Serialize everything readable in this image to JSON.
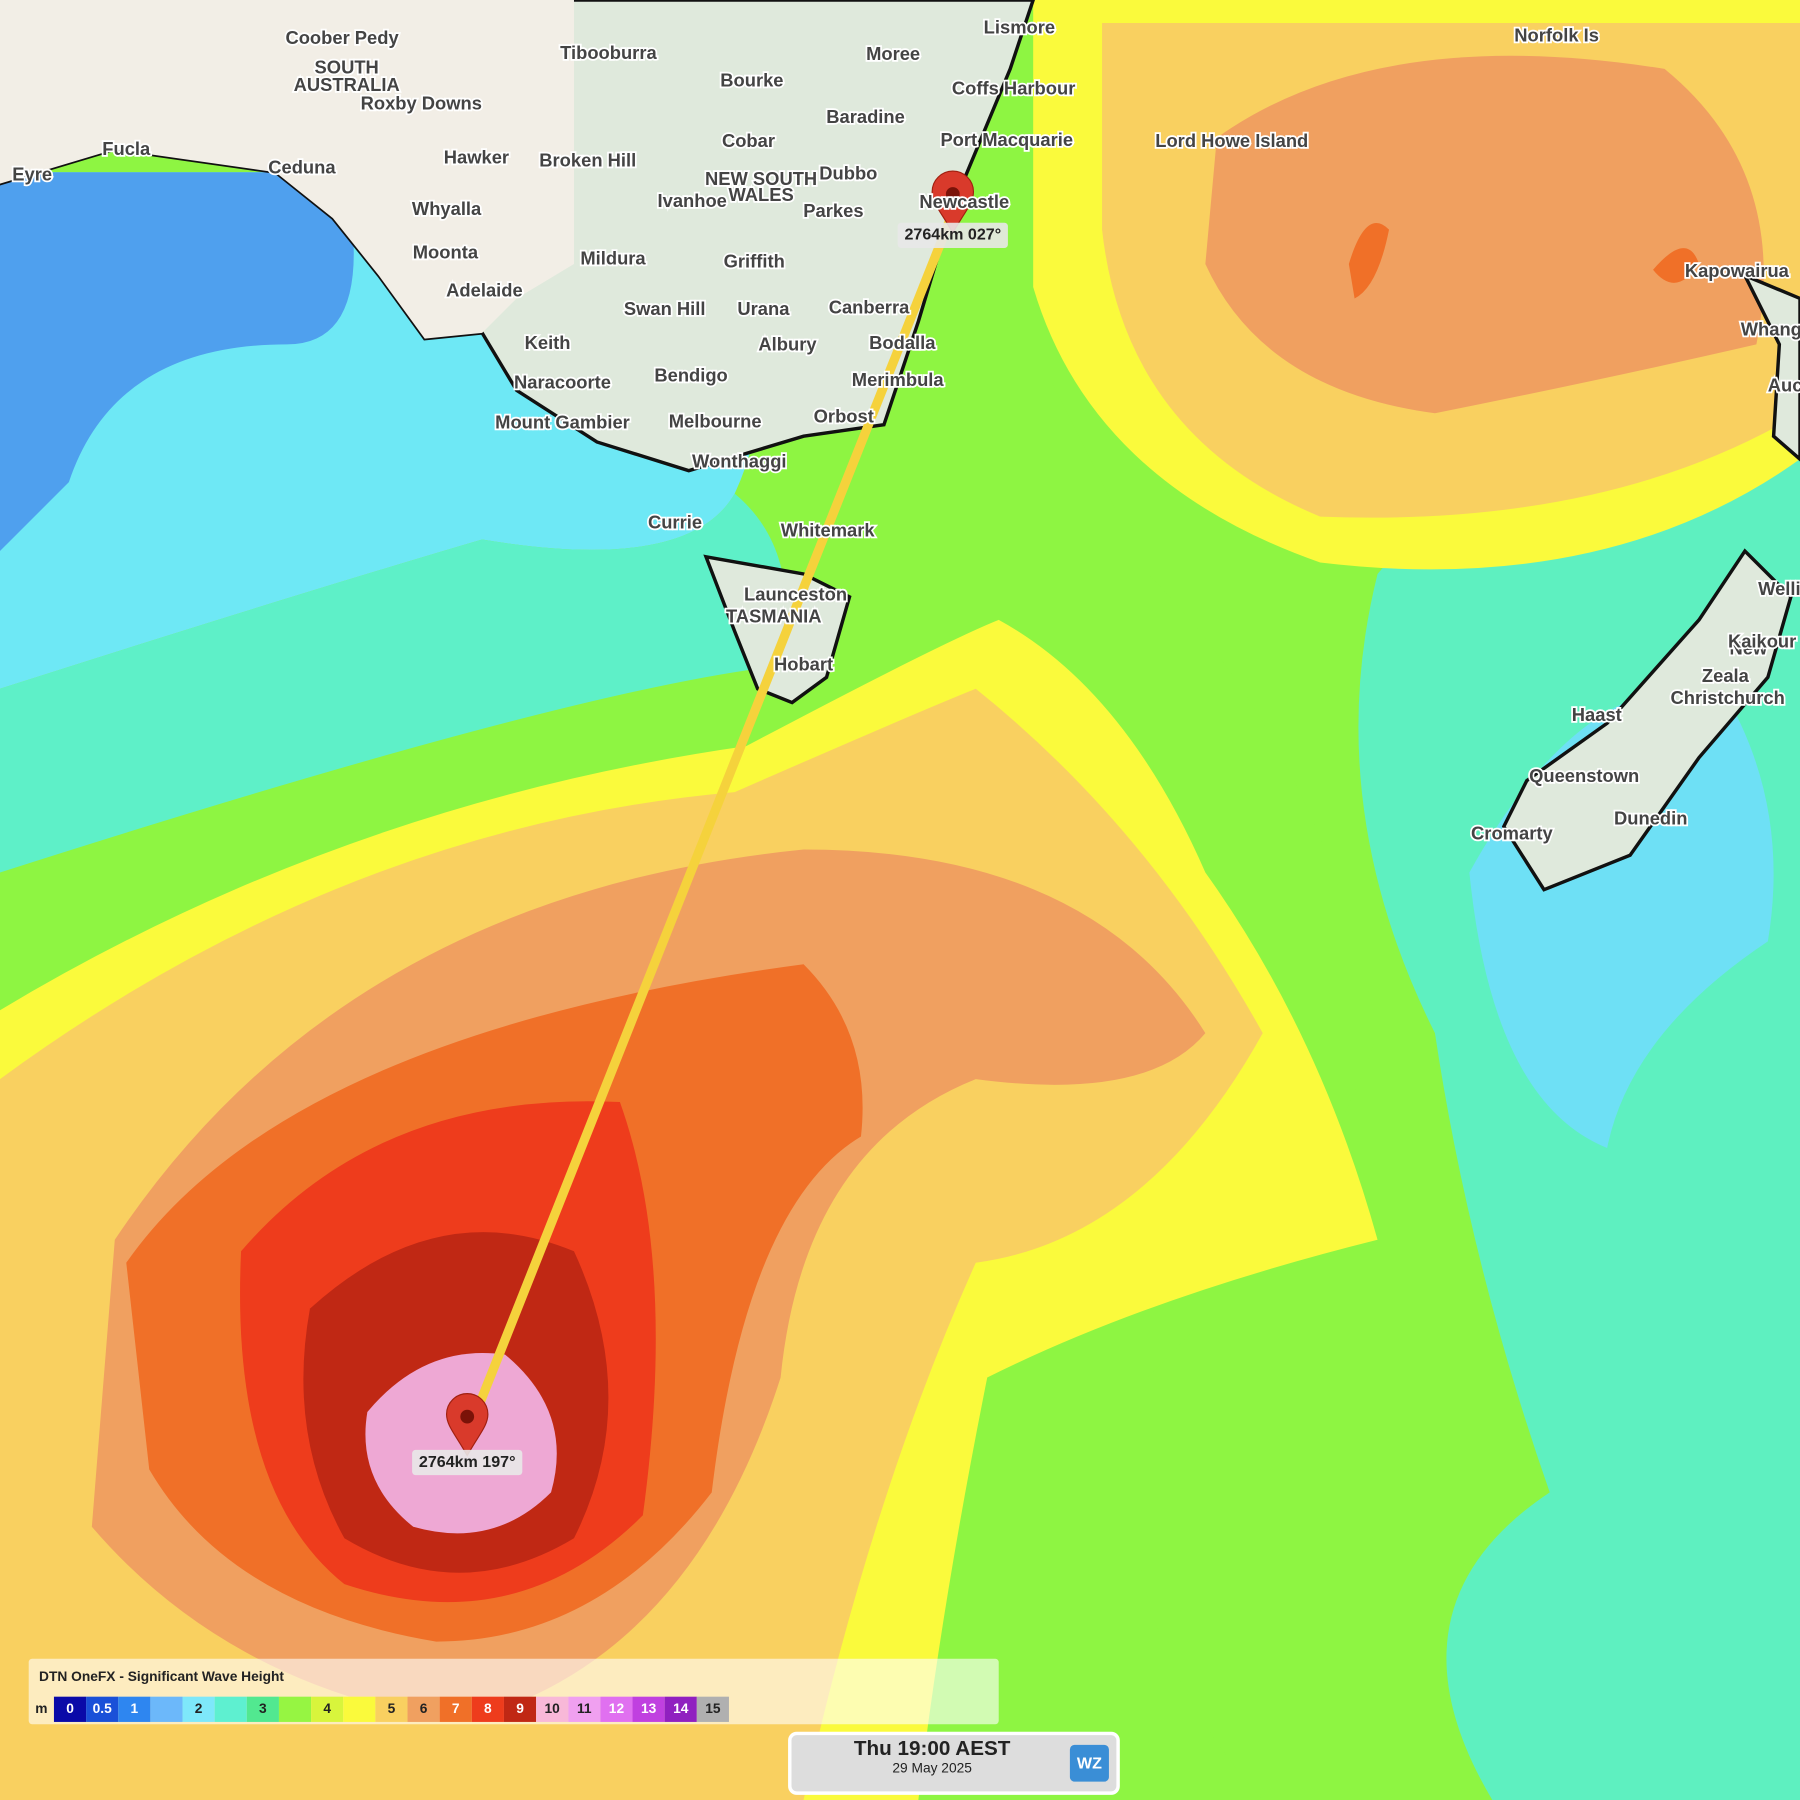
{
  "map": {
    "places": [
      "Coober Pedy",
      "SOUTH",
      "AUSTRALIA",
      "Tibooburra",
      "Moree",
      "Lismore",
      "Norfolk Is",
      "Coffs Harbour",
      "Bourke",
      "Roxby Downs",
      "Baradine",
      "Fucla",
      "Eyre",
      "Ceduna",
      "Hawker",
      "Broken Hill",
      "Cobar",
      "Port Macquarie",
      "Lord Howe Island",
      "NEW SOUTH",
      "WALES",
      "Dubbo",
      "Ivanhoe",
      "Parkes",
      "Whyalla",
      "Newcastle",
      "Moonta",
      "Mildura",
      "Griffith",
      "Kapowairua",
      "Adelaide",
      "Canberra",
      "Swan Hill",
      "Urana",
      "Whang",
      "Keith",
      "Bodalla",
      "Albury",
      "Naracoorte",
      "Bendigo",
      "Merimbula",
      "Auc",
      "Mount Gambier",
      "Melbourne",
      "Orbost",
      "Wonthaggi",
      "Currie",
      "Whitemark",
      "Welli",
      "Launceston",
      "TASMANIA",
      "Hobart",
      "New",
      "Kaikour",
      "Zeala",
      "Christchurch",
      "Haast",
      "Queenstown",
      "Dunedin",
      "Cromarty"
    ],
    "markers": [
      {
        "label": "2764km 027°"
      },
      {
        "label": "2764km 197°"
      }
    ],
    "legend": {
      "title": "DTN OneFX - Significant Wave Height",
      "unit": "m",
      "scale": [
        {
          "label": "0",
          "color": "#0a0aa8"
        },
        {
          "label": "0.5",
          "color": "#1a50d8"
        },
        {
          "label": "1",
          "color": "#2e86f0"
        },
        {
          "color": "#6cb8fa"
        },
        {
          "label": "2",
          "color": "#7ee8fa"
        },
        {
          "color": "#5ef0d0"
        },
        {
          "label": "3",
          "color": "#52e890"
        },
        {
          "color": "#96f542"
        },
        {
          "label": "4",
          "color": "#d8f53c"
        },
        {
          "color": "#fafa3c"
        },
        {
          "label": "5",
          "color": "#f9d060"
        },
        {
          "label": "6",
          "color": "#f0a060"
        },
        {
          "label": "7",
          "color": "#f07028"
        },
        {
          "label": "8",
          "color": "#ee3c1c"
        },
        {
          "label": "9",
          "color": "#c02814"
        },
        {
          "label": "10",
          "color": "#f8b8d8"
        },
        {
          "label": "11",
          "color": "#f0a0f0"
        },
        {
          "label": "12",
          "color": "#e070f0"
        },
        {
          "label": "13",
          "color": "#c040e0"
        },
        {
          "label": "14",
          "color": "#9020c0"
        },
        {
          "label": "15",
          "color": "#b0b0b0"
        }
      ]
    },
    "time": {
      "main": "Thu 19:00 AEST",
      "date": "29 May 2025",
      "logo": "WZ"
    }
  }
}
